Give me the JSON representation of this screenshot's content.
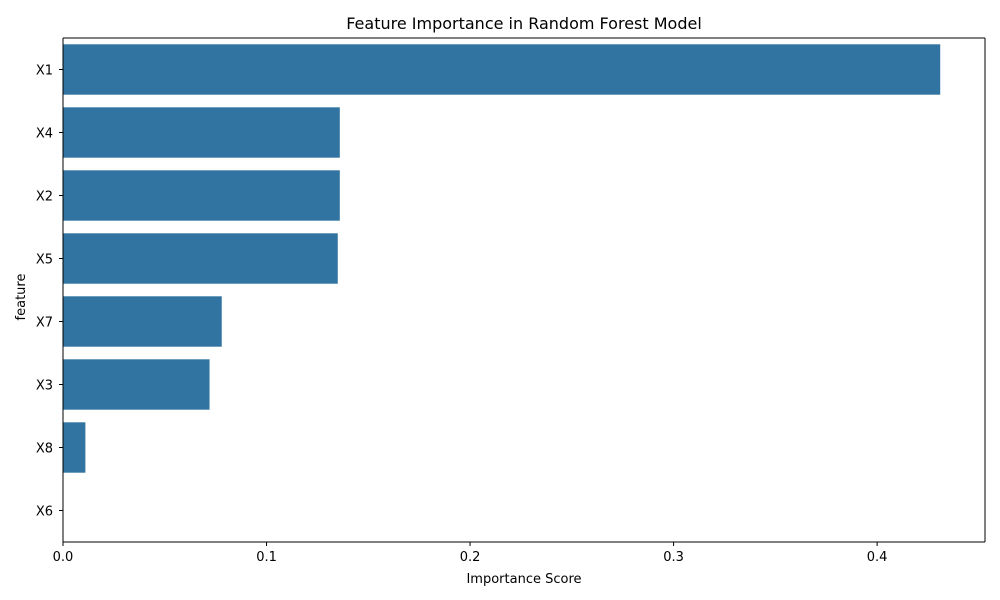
{
  "chart_data": {
    "type": "bar",
    "orientation": "horizontal",
    "title": "Feature Importance in Random Forest Model",
    "xlabel": "Importance Score",
    "ylabel": "feature",
    "categories": [
      "X1",
      "X4",
      "X2",
      "X5",
      "X7",
      "X3",
      "X8",
      "X6"
    ],
    "values": [
      0.431,
      0.136,
      0.136,
      0.135,
      0.078,
      0.072,
      0.011,
      0.0
    ],
    "xlim": [
      0,
      0.453
    ],
    "xticks": [
      0.0,
      0.1,
      0.2,
      0.3,
      0.4
    ],
    "xtick_labels": [
      "0.0",
      "0.1",
      "0.2",
      "0.3",
      "0.4"
    ],
    "grid": false,
    "bar_color": "#3274a1"
  }
}
